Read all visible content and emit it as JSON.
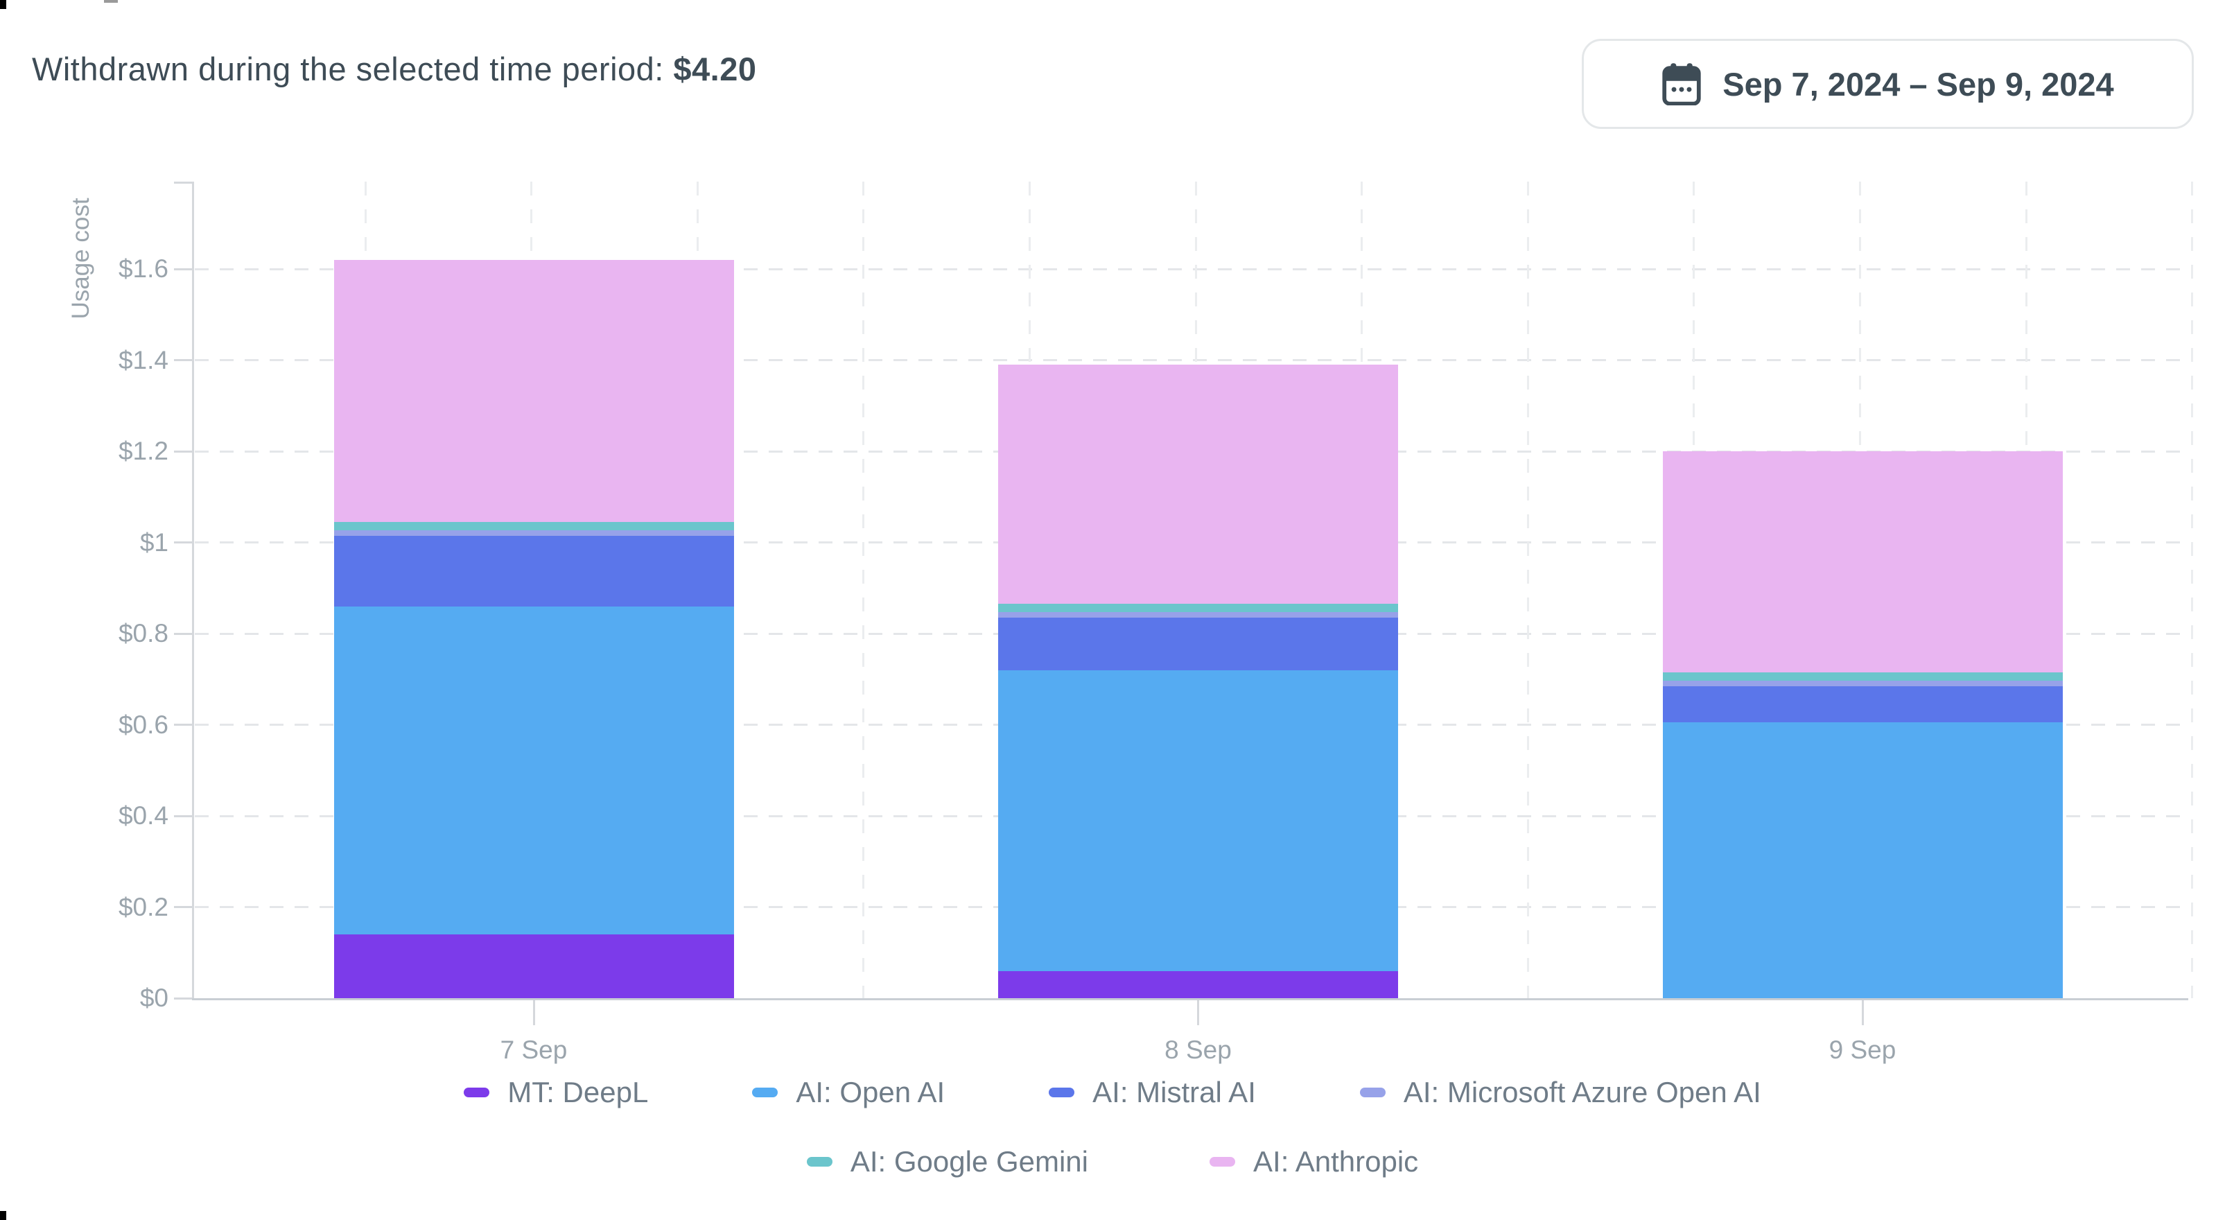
{
  "header": {
    "title_prefix": "Withdrawn during the selected time period: ",
    "amount": "$4.20"
  },
  "date_range": {
    "label": "Sep 7, 2024 – Sep 9, 2024",
    "icon": "calendar-icon"
  },
  "chart_data": {
    "type": "bar",
    "stacked": true,
    "ylabel": "Usage cost",
    "categories": [
      "7 Sep",
      "8 Sep",
      "9 Sep"
    ],
    "y_ticks": [
      "$0",
      "$0.2",
      "$0.4",
      "$0.6",
      "$0.8",
      "$1",
      "$1.2",
      "$1.4",
      "$1.6"
    ],
    "y_tick_values": [
      0,
      0.2,
      0.4,
      0.6,
      0.8,
      1.0,
      1.2,
      1.4,
      1.6
    ],
    "ylim": [
      0,
      1.79
    ],
    "currency": "$",
    "grid": "dashed",
    "legend_position": "bottom",
    "series": [
      {
        "name": "MT: DeepL",
        "color": "#7C3BEA",
        "values": [
          0.14,
          0.06,
          0
        ]
      },
      {
        "name": "AI: Open AI",
        "color": "#55ABF2",
        "values": [
          0.72,
          0.66,
          0.605
        ]
      },
      {
        "name": "AI: Mistral AI",
        "color": "#5B76EA",
        "values": [
          0.155,
          0.115,
          0.08
        ]
      },
      {
        "name": "AI: Microsoft Azure Open AI",
        "color": "#97A2E9",
        "values": [
          0.012,
          0.012,
          0.012
        ]
      },
      {
        "name": "AI: Google Gemini",
        "color": "#6BC5CC",
        "values": [
          0.018,
          0.018,
          0.018
        ]
      },
      {
        "name": "AI: Anthropic",
        "color": "#E9B5F1",
        "values": [
          0.575,
          0.525,
          0.485
        ]
      }
    ],
    "bar_totals": [
      1.62,
      1.39,
      1.2
    ],
    "colors": {
      "axis_text": "#9AA4AC",
      "legend_text": "#6F7C88",
      "header_text": "#3E4C56",
      "axis_line": "#D5D8DC",
      "grid_line": "#E4E6E9"
    }
  }
}
